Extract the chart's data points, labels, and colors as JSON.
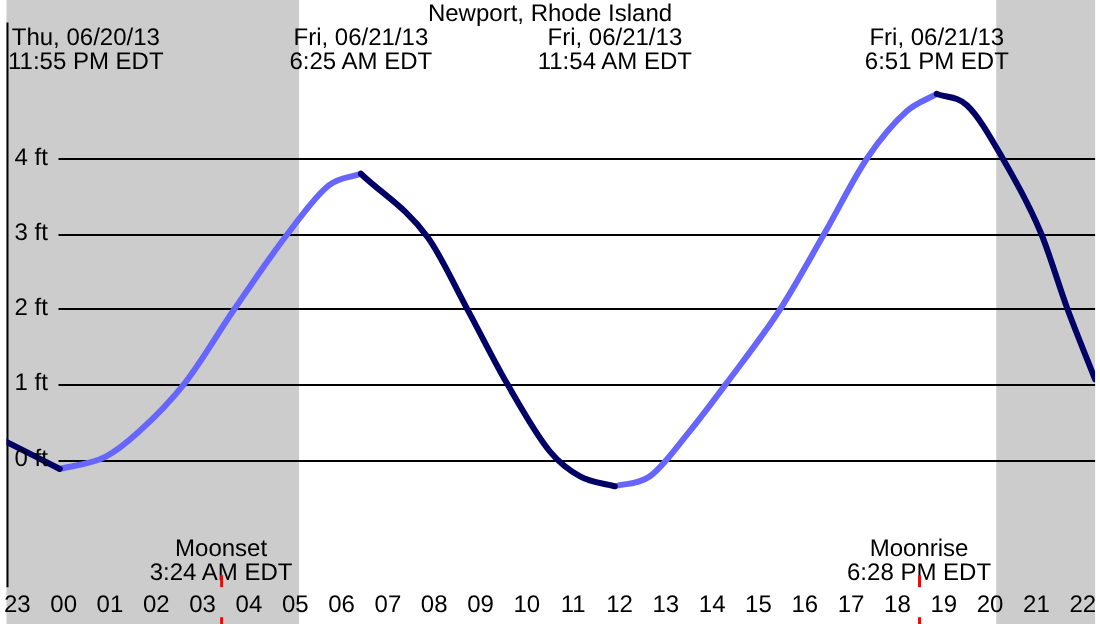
{
  "chart_data": {
    "type": "line",
    "title": "Newport, Rhode Island",
    "x": [
      "--06-20T22:46",
      "--06-20T23:55",
      "--06-21T00:54",
      "--06-21T01:37",
      "--06-21T02:37",
      "--06-21T03:41",
      "--06-21T04:50",
      "--06-21T05:44",
      "--06-21T06:25",
      "--06-21T07:52",
      "--06-21T08:43",
      "--06-21T09:34",
      "--06-21T10:30",
      "--06-21T11:09",
      "--06-21T11:54",
      "--06-21T12:39",
      "--06-21T13:30",
      "--06-21T14:18",
      "--06-21T15:28",
      "--06-21T16:25",
      "--06-21T17:21",
      "--06-21T18:12",
      "--06-21T18:51",
      "--06-21T19:30",
      "--06-21T20:16",
      "--06-21T21:06",
      "--06-21T21:40",
      "--06-21T22:16"
    ],
    "series": [
      {
        "color": "#000066",
        "values": [
          0.23,
          -0.13,
          null,
          null,
          null,
          null,
          null,
          null,
          3.79,
          2.94,
          1.99,
          1.01,
          0.1,
          -0.23,
          -0.36,
          null,
          null,
          null,
          null,
          null,
          null,
          null,
          4.85,
          4.7,
          4.0,
          3.0,
          2.0,
          1.06
        ]
      },
      {
        "color": "#6666ff",
        "values": [
          null,
          -0.13,
          0.03,
          0.36,
          1.01,
          1.99,
          2.99,
          3.64,
          3.79,
          null,
          null,
          null,
          null,
          null,
          -0.36,
          -0.23,
          0.36,
          1.0,
          1.99,
          2.99,
          4.0,
          4.62,
          4.85,
          null,
          null,
          null,
          null,
          null
        ]
      }
    ],
    "xlim": [
      "--06-20T22:46",
      "--06-21T22:16"
    ],
    "xticks": [
      {
        "value": "--06-20T23:00",
        "label": "23"
      },
      {
        "value": "--06-21T00:00",
        "label": "00"
      },
      {
        "value": "--06-21T01:00",
        "label": "01"
      },
      {
        "value": "--06-21T02:00",
        "label": "02"
      },
      {
        "value": "--06-21T03:00",
        "label": "03"
      },
      {
        "value": "--06-21T04:00",
        "label": "04"
      },
      {
        "value": "--06-21T05:00",
        "label": "05"
      },
      {
        "value": "--06-21T06:00",
        "label": "06"
      },
      {
        "value": "--06-21T07:00",
        "label": "07"
      },
      {
        "value": "--06-21T08:00",
        "label": "08"
      },
      {
        "value": "--06-21T09:00",
        "label": "09"
      },
      {
        "value": "--06-21T10:00",
        "label": "10"
      },
      {
        "value": "--06-21T11:00",
        "label": "11"
      },
      {
        "value": "--06-21T12:00",
        "label": "12"
      },
      {
        "value": "--06-21T13:00",
        "label": "13"
      },
      {
        "value": "--06-21T14:00",
        "label": "14"
      },
      {
        "value": "--06-21T15:00",
        "label": "15"
      },
      {
        "value": "--06-21T16:00",
        "label": "16"
      },
      {
        "value": "--06-21T17:00",
        "label": "17"
      },
      {
        "value": "--06-21T18:00",
        "label": "18"
      },
      {
        "value": "--06-21T19:00",
        "label": "19"
      },
      {
        "value": "--06-21T20:00",
        "label": "20"
      },
      {
        "value": "--06-21T21:00",
        "label": "21"
      },
      {
        "value": "--06-21T22:00",
        "label": "22"
      }
    ],
    "ylim": [
      -1.7,
      5.8
    ],
    "yticks": [
      {
        "value": 0,
        "label": "0 ft"
      },
      {
        "value": 1,
        "label": "1 ft"
      },
      {
        "value": 2,
        "label": "2 ft"
      },
      {
        "value": 3,
        "label": "3 ft"
      },
      {
        "value": 4,
        "label": "4 ft"
      }
    ],
    "grid": "y",
    "bands": [
      {
        "axis": "x",
        "from": "--06-20T22:46",
        "to": "--06-21T05:05",
        "color": "#cccccc"
      },
      {
        "axis": "x",
        "from": "--06-21T20:08",
        "to": "--06-21T22:16",
        "color": "#cccccc"
      }
    ],
    "ref_lines": [
      {
        "axis": "x",
        "value": "--06-21T03:24",
        "label": "Moonset\n3:24 AM EDT",
        "color": "#ff0000"
      },
      {
        "axis": "x",
        "value": "--06-21T18:28",
        "label": "Moonrise\n6:28 PM EDT",
        "color": "#ff0000"
      }
    ],
    "annotations": [
      "Thu, 06/20/13\n11:55 PM EDT",
      "Fri, 06/21/13\n6:25 AM EDT",
      "Fri, 06/21/13\n11:54 AM EDT",
      "Fri, 06/21/13\n6:51 PM EDT"
    ],
    "legend": false
  }
}
